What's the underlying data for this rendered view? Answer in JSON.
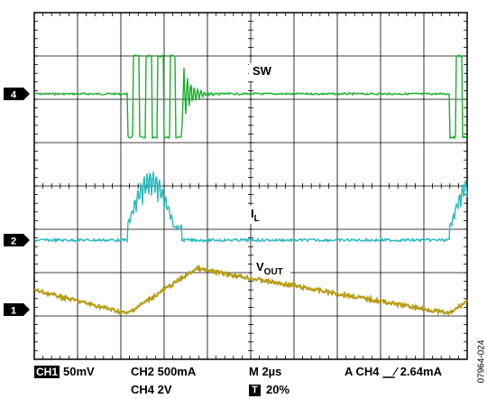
{
  "chart_data": {
    "type": "line",
    "title": "",
    "xlabel": "",
    "ylabel": "",
    "grid": true,
    "divisions": {
      "x": 10,
      "y": 8
    },
    "x_unit": "µs",
    "x_range": [
      0,
      20
    ],
    "series": [
      {
        "name": "SW",
        "channel": "4",
        "color": "#19b02a",
        "sub": "",
        "description_values": {
          "low_level_div": 1.0,
          "high_level_div": 2.0,
          "bursts": [
            [
              4.3,
              6.8
            ],
            [
              19.2,
              21.7
            ]
          ]
        }
      },
      {
        "name": "I",
        "channel": "2",
        "color": "#28b9be",
        "sub": "L",
        "description_values": {
          "baseline_div": 0,
          "peak_div": 1.3,
          "bursts": [
            [
              4.3,
              6.8
            ],
            [
              19.2,
              21.7
            ]
          ]
        }
      },
      {
        "name": "V",
        "channel": "1",
        "color": "#b79d18",
        "sub": "OUT",
        "x": [
          0,
          4.3,
          7.5,
          19.2,
          22
        ],
        "y": [
          0.5,
          -0.1,
          1.05,
          -0.1,
          1.05
        ]
      }
    ],
    "markers": [
      {
        "label": "4",
        "channel": "4"
      },
      {
        "label": "2",
        "channel": "2"
      },
      {
        "label": "1",
        "channel": "1"
      }
    ]
  },
  "readout": {
    "ch1_badge": "CH1",
    "ch1_scale": "50mV",
    "ch2": "CH2  500mA",
    "ch4": "CH4 2V",
    "timebase": "M 2µs",
    "trigger_badge": "T",
    "trigger_pos": "20%",
    "trigger_prefix": "A  CH4",
    "trigger_edge_glyph": "⎽∕",
    "trigger_level": "2.64mA"
  },
  "figure_id": "07964-024"
}
